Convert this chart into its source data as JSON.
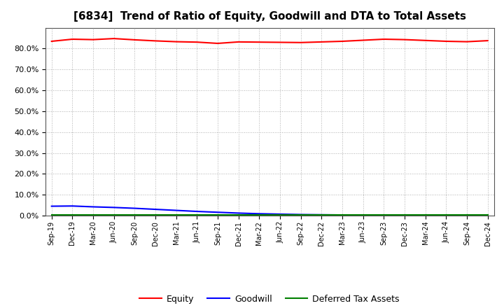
{
  "title": "[6834]  Trend of Ratio of Equity, Goodwill and DTA to Total Assets",
  "x_labels": [
    "Sep-19",
    "Dec-19",
    "Mar-20",
    "Jun-20",
    "Sep-20",
    "Dec-20",
    "Mar-21",
    "Jun-21",
    "Sep-21",
    "Dec-21",
    "Mar-22",
    "Jun-22",
    "Sep-22",
    "Dec-22",
    "Mar-23",
    "Jun-23",
    "Sep-23",
    "Dec-23",
    "Mar-24",
    "Jun-24",
    "Sep-24",
    "Dec-24"
  ],
  "equity": [
    83.5,
    84.5,
    84.3,
    84.8,
    84.2,
    83.7,
    83.3,
    83.1,
    82.5,
    83.2,
    83.1,
    83.0,
    82.9,
    83.2,
    83.5,
    84.0,
    84.5,
    84.3,
    83.9,
    83.5,
    83.3,
    83.8
  ],
  "goodwill": [
    4.5,
    4.6,
    4.2,
    3.9,
    3.5,
    3.0,
    2.5,
    2.0,
    1.6,
    1.2,
    0.9,
    0.7,
    0.5,
    0.4,
    0.3,
    0.25,
    0.2,
    0.18,
    0.15,
    0.12,
    0.1,
    0.08
  ],
  "dta": [
    0.3,
    0.3,
    0.3,
    0.3,
    0.3,
    0.3,
    0.3,
    0.3,
    0.3,
    0.3,
    0.3,
    0.3,
    0.3,
    0.3,
    0.3,
    0.3,
    0.3,
    0.3,
    0.3,
    0.3,
    0.3,
    0.3
  ],
  "equity_color": "#ff0000",
  "goodwill_color": "#0000ff",
  "dta_color": "#008000",
  "ylim": [
    0,
    90
  ],
  "yticks": [
    0,
    10,
    20,
    30,
    40,
    50,
    60,
    70,
    80
  ],
  "legend_labels": [
    "Equity",
    "Goodwill",
    "Deferred Tax Assets"
  ],
  "background_color": "#ffffff",
  "grid_color": "#b0b0b0",
  "title_fontsize": 11
}
